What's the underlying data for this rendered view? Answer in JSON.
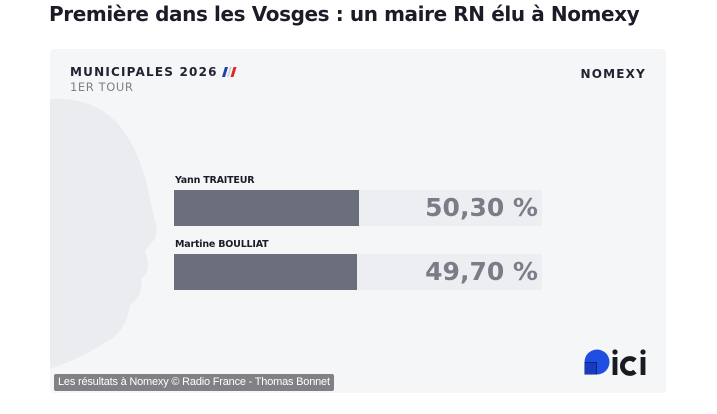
{
  "page": {
    "title": "Première dans les Vosges : un maire RN élu à Nomexy"
  },
  "card": {
    "election_title": "MUNICIPALES 2026",
    "round": "1ER TOUR",
    "commune": "NOMEXY",
    "flag_icon": "french-flag-icon",
    "logo_icon": "ici-logo-icon",
    "colors": {
      "background": "#f5f6f8",
      "bar_fill": "#6b6f7b",
      "bar_track": "#eceef1",
      "percent_text": "#7a7d87",
      "logo_blue": "#1f4fe0"
    }
  },
  "chart_data": {
    "type": "bar",
    "orientation": "horizontal",
    "categories": [
      "Yann TRAITEUR",
      "Martine BOULLIAT"
    ],
    "values": [
      50.3,
      49.7
    ],
    "value_labels": [
      "50,30 %",
      "49,70 %"
    ],
    "unit": "%",
    "xlim": [
      0,
      100
    ],
    "grid": false,
    "legend": "none",
    "title": "MUNICIPALES 2026",
    "subtitle": "1ER TOUR"
  },
  "caption": "Les résultats à Nomexy © Radio France - Thomas Bonnet"
}
